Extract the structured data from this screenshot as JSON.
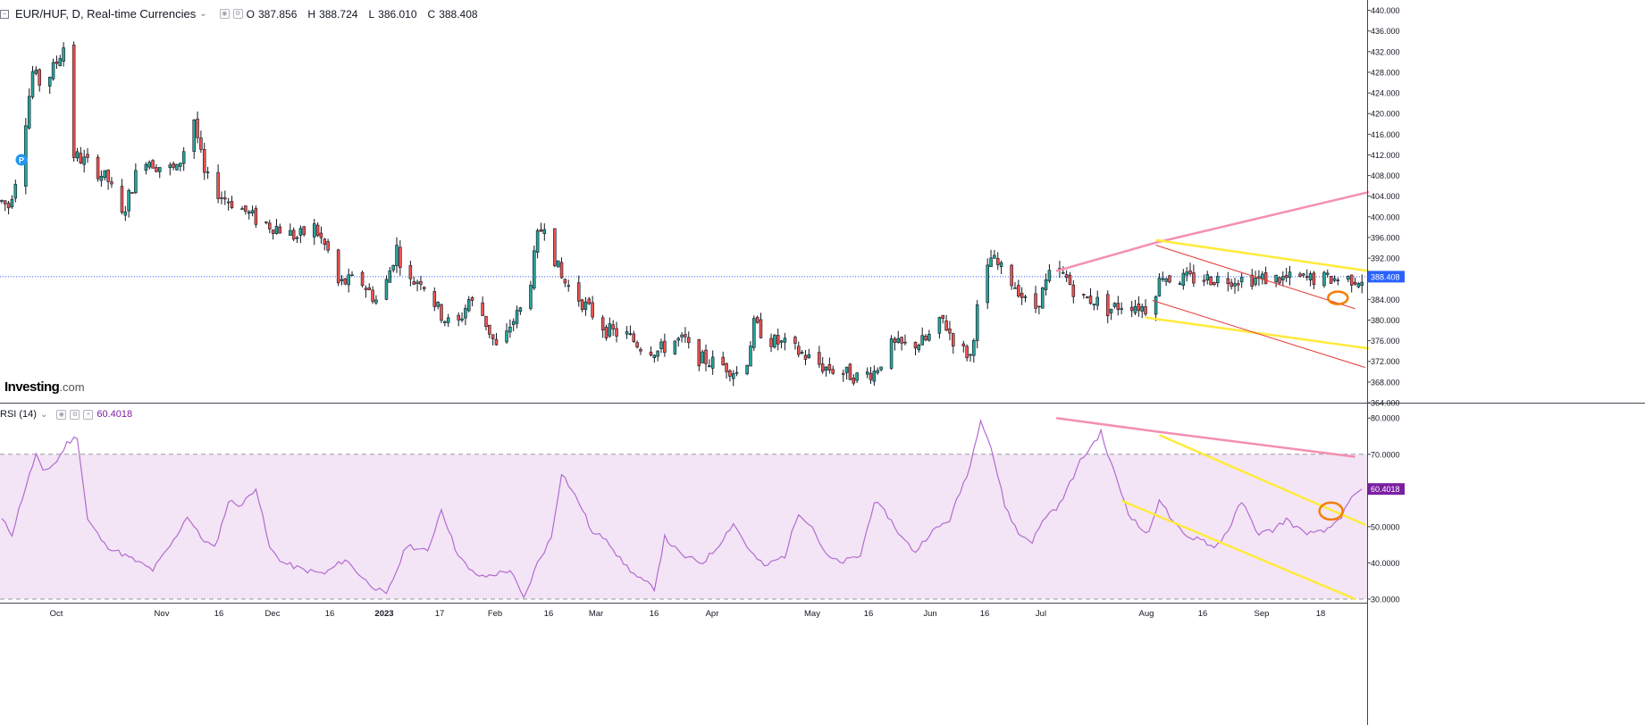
{
  "header": {
    "symbol": "EUR/HUF, D, Real-time Currencies",
    "open_label": "O",
    "open": "387.856",
    "high_label": "H",
    "high": "388.724",
    "low_label": "L",
    "low": "386.010",
    "close_label": "C",
    "close": "388.408"
  },
  "rsi_header": {
    "label": "RSI (14)",
    "value": "60.4018"
  },
  "logo": {
    "name": "Investing",
    "suffix": ".com"
  },
  "colors": {
    "up": "#26a69a",
    "down": "#ef5350",
    "rsi_line": "#b36bd1",
    "rsi_band": "#f3e5f5",
    "pink_trend": "#f48fb1",
    "yellow_trend": "#ffeb3b",
    "red_trend": "#e53935",
    "circle": "#f57c00",
    "price_line": "#2962ff",
    "price_tag": "#2962ff",
    "rsi_tag": "#7b1fa2"
  },
  "chart_data": [
    {
      "type": "candlestick",
      "title": "EUR/HUF, D, Real-time Currencies",
      "ylim": [
        364,
        442
      ],
      "y_ticks": [
        "364.000",
        "368.000",
        "372.000",
        "376.000",
        "380.000",
        "384.000",
        "388.000",
        "392.000",
        "396.000",
        "400.000",
        "404.000",
        "408.000",
        "412.000",
        "416.000",
        "420.000",
        "424.000",
        "428.000",
        "432.000",
        "436.000",
        "440.000"
      ],
      "last_price": "388.408",
      "x_tick_labels": [
        "Oct",
        "Nov",
        "16",
        "Dec",
        "16",
        "2023",
        "17",
        "Feb",
        "16",
        "Mar",
        "16",
        "Apr",
        "May",
        "16",
        "Jun",
        "16",
        "Jul",
        "Aug",
        "16",
        "Sep",
        "18"
      ],
      "path_anchors": [
        [
          0,
          403
        ],
        [
          2,
          402
        ],
        [
          5,
          410
        ],
        [
          9,
          428
        ],
        [
          12,
          425
        ],
        [
          16,
          430
        ],
        [
          18,
          433
        ],
        [
          21,
          412
        ],
        [
          26,
          410
        ],
        [
          31,
          407
        ],
        [
          35,
          400
        ],
        [
          41,
          412
        ],
        [
          45,
          410
        ],
        [
          51,
          409
        ],
        [
          56,
          419
        ],
        [
          59,
          408
        ],
        [
          64,
          404
        ],
        [
          69,
          402
        ],
        [
          75,
          399
        ],
        [
          80,
          398
        ],
        [
          86,
          396
        ],
        [
          91,
          398
        ],
        [
          96,
          392
        ],
        [
          98,
          387
        ],
        [
          104,
          388
        ],
        [
          110,
          383
        ],
        [
          115,
          394
        ],
        [
          118,
          387
        ],
        [
          122,
          388
        ],
        [
          128,
          381
        ],
        [
          132,
          378
        ],
        [
          136,
          384
        ],
        [
          140,
          381
        ],
        [
          145,
          373
        ],
        [
          148,
          379
        ],
        [
          153,
          384
        ],
        [
          156,
          396
        ],
        [
          158,
          399
        ],
        [
          161,
          392
        ],
        [
          163,
          388
        ],
        [
          167,
          385
        ],
        [
          171,
          382
        ],
        [
          176,
          378
        ],
        [
          182,
          377
        ],
        [
          186,
          375
        ],
        [
          191,
          374
        ],
        [
          196,
          376
        ],
        [
          199,
          376
        ],
        [
          201,
          373
        ],
        [
          206,
          372
        ],
        [
          211,
          371
        ],
        [
          216,
          369
        ],
        [
          219,
          379
        ],
        [
          224,
          376
        ],
        [
          229,
          375
        ],
        [
          234,
          373
        ],
        [
          239,
          371
        ],
        [
          244,
          370
        ],
        [
          249,
          369
        ],
        [
          254,
          370
        ],
        [
          259,
          375
        ],
        [
          264,
          375
        ],
        [
          269,
          376
        ],
        [
          274,
          380
        ],
        [
          278,
          375
        ],
        [
          282,
          373
        ],
        [
          284,
          382
        ],
        [
          288,
          392
        ],
        [
          292,
          389
        ],
        [
          296,
          386
        ],
        [
          300,
          381
        ],
        [
          302,
          384
        ],
        [
          306,
          390
        ],
        [
          310,
          388
        ],
        [
          314,
          384
        ],
        [
          318,
          384
        ],
        [
          322,
          382
        ],
        [
          326,
          383
        ],
        [
          330,
          383
        ],
        [
          334,
          382
        ],
        [
          336,
          386
        ],
        [
          338,
          389
        ],
        [
          340,
          388
        ]
      ],
      "annotations": [
        "P"
      ]
    },
    {
      "type": "line",
      "title": "RSI (14)",
      "ylim": [
        29,
        84
      ],
      "y_ticks": [
        "30.0000",
        "40.0000",
        "50.0000",
        "60.0000",
        "70.0000",
        "80.0000"
      ],
      "last_value": "60.4018",
      "bands": [
        30,
        70
      ],
      "anchors": [
        [
          0,
          52
        ],
        [
          3,
          48
        ],
        [
          6,
          58
        ],
        [
          10,
          70
        ],
        [
          12,
          65
        ],
        [
          16,
          68
        ],
        [
          19,
          73
        ],
        [
          22,
          75
        ],
        [
          25,
          52
        ],
        [
          30,
          45
        ],
        [
          38,
          41
        ],
        [
          44,
          38
        ],
        [
          50,
          46
        ],
        [
          54,
          53
        ],
        [
          58,
          47
        ],
        [
          62,
          44
        ],
        [
          66,
          57
        ],
        [
          70,
          56
        ],
        [
          74,
          61
        ],
        [
          78,
          44
        ],
        [
          82,
          40
        ],
        [
          88,
          38
        ],
        [
          94,
          37
        ],
        [
          100,
          41
        ],
        [
          106,
          35
        ],
        [
          112,
          31
        ],
        [
          118,
          45
        ],
        [
          124,
          43
        ],
        [
          128,
          55
        ],
        [
          132,
          44
        ],
        [
          136,
          38
        ],
        [
          140,
          36
        ],
        [
          148,
          38
        ],
        [
          152,
          30
        ],
        [
          156,
          40
        ],
        [
          160,
          47
        ],
        [
          163,
          65
        ],
        [
          166,
          60
        ],
        [
          169,
          55
        ],
        [
          172,
          48
        ],
        [
          176,
          47
        ],
        [
          180,
          41
        ],
        [
          185,
          36
        ],
        [
          190,
          33
        ],
        [
          193,
          47
        ],
        [
          198,
          42
        ],
        [
          204,
          40
        ],
        [
          208,
          44
        ],
        [
          213,
          51
        ],
        [
          218,
          43
        ],
        [
          222,
          39
        ],
        [
          228,
          42
        ],
        [
          232,
          54
        ],
        [
          236,
          50
        ],
        [
          240,
          42
        ],
        [
          244,
          40
        ],
        [
          250,
          42
        ],
        [
          254,
          57
        ],
        [
          258,
          53
        ],
        [
          262,
          47
        ],
        [
          266,
          43
        ],
        [
          270,
          48
        ],
        [
          276,
          52
        ],
        [
          282,
          67
        ],
        [
          285,
          80
        ],
        [
          288,
          72
        ],
        [
          292,
          56
        ],
        [
          296,
          48
        ],
        [
          300,
          46
        ],
        [
          304,
          53
        ],
        [
          308,
          56
        ],
        [
          311,
          62
        ],
        [
          314,
          68
        ],
        [
          317,
          72
        ],
        [
          320,
          76
        ],
        [
          322,
          70
        ],
        [
          325,
          62
        ],
        [
          328,
          54
        ],
        [
          331,
          50
        ],
        [
          334,
          48
        ],
        [
          337,
          58
        ],
        [
          341,
          51
        ],
        [
          345,
          47
        ],
        [
          349,
          47
        ],
        [
          353,
          44
        ],
        [
          357,
          49
        ],
        [
          361,
          57
        ],
        [
          363,
          53
        ],
        [
          366,
          48
        ],
        [
          370,
          49
        ],
        [
          374,
          52
        ],
        [
          378,
          49
        ],
        [
          382,
          48
        ],
        [
          386,
          49
        ],
        [
          388,
          51
        ],
        [
          390,
          53
        ],
        [
          392,
          56
        ],
        [
          394,
          59
        ],
        [
          396,
          60.4
        ]
      ]
    }
  ]
}
